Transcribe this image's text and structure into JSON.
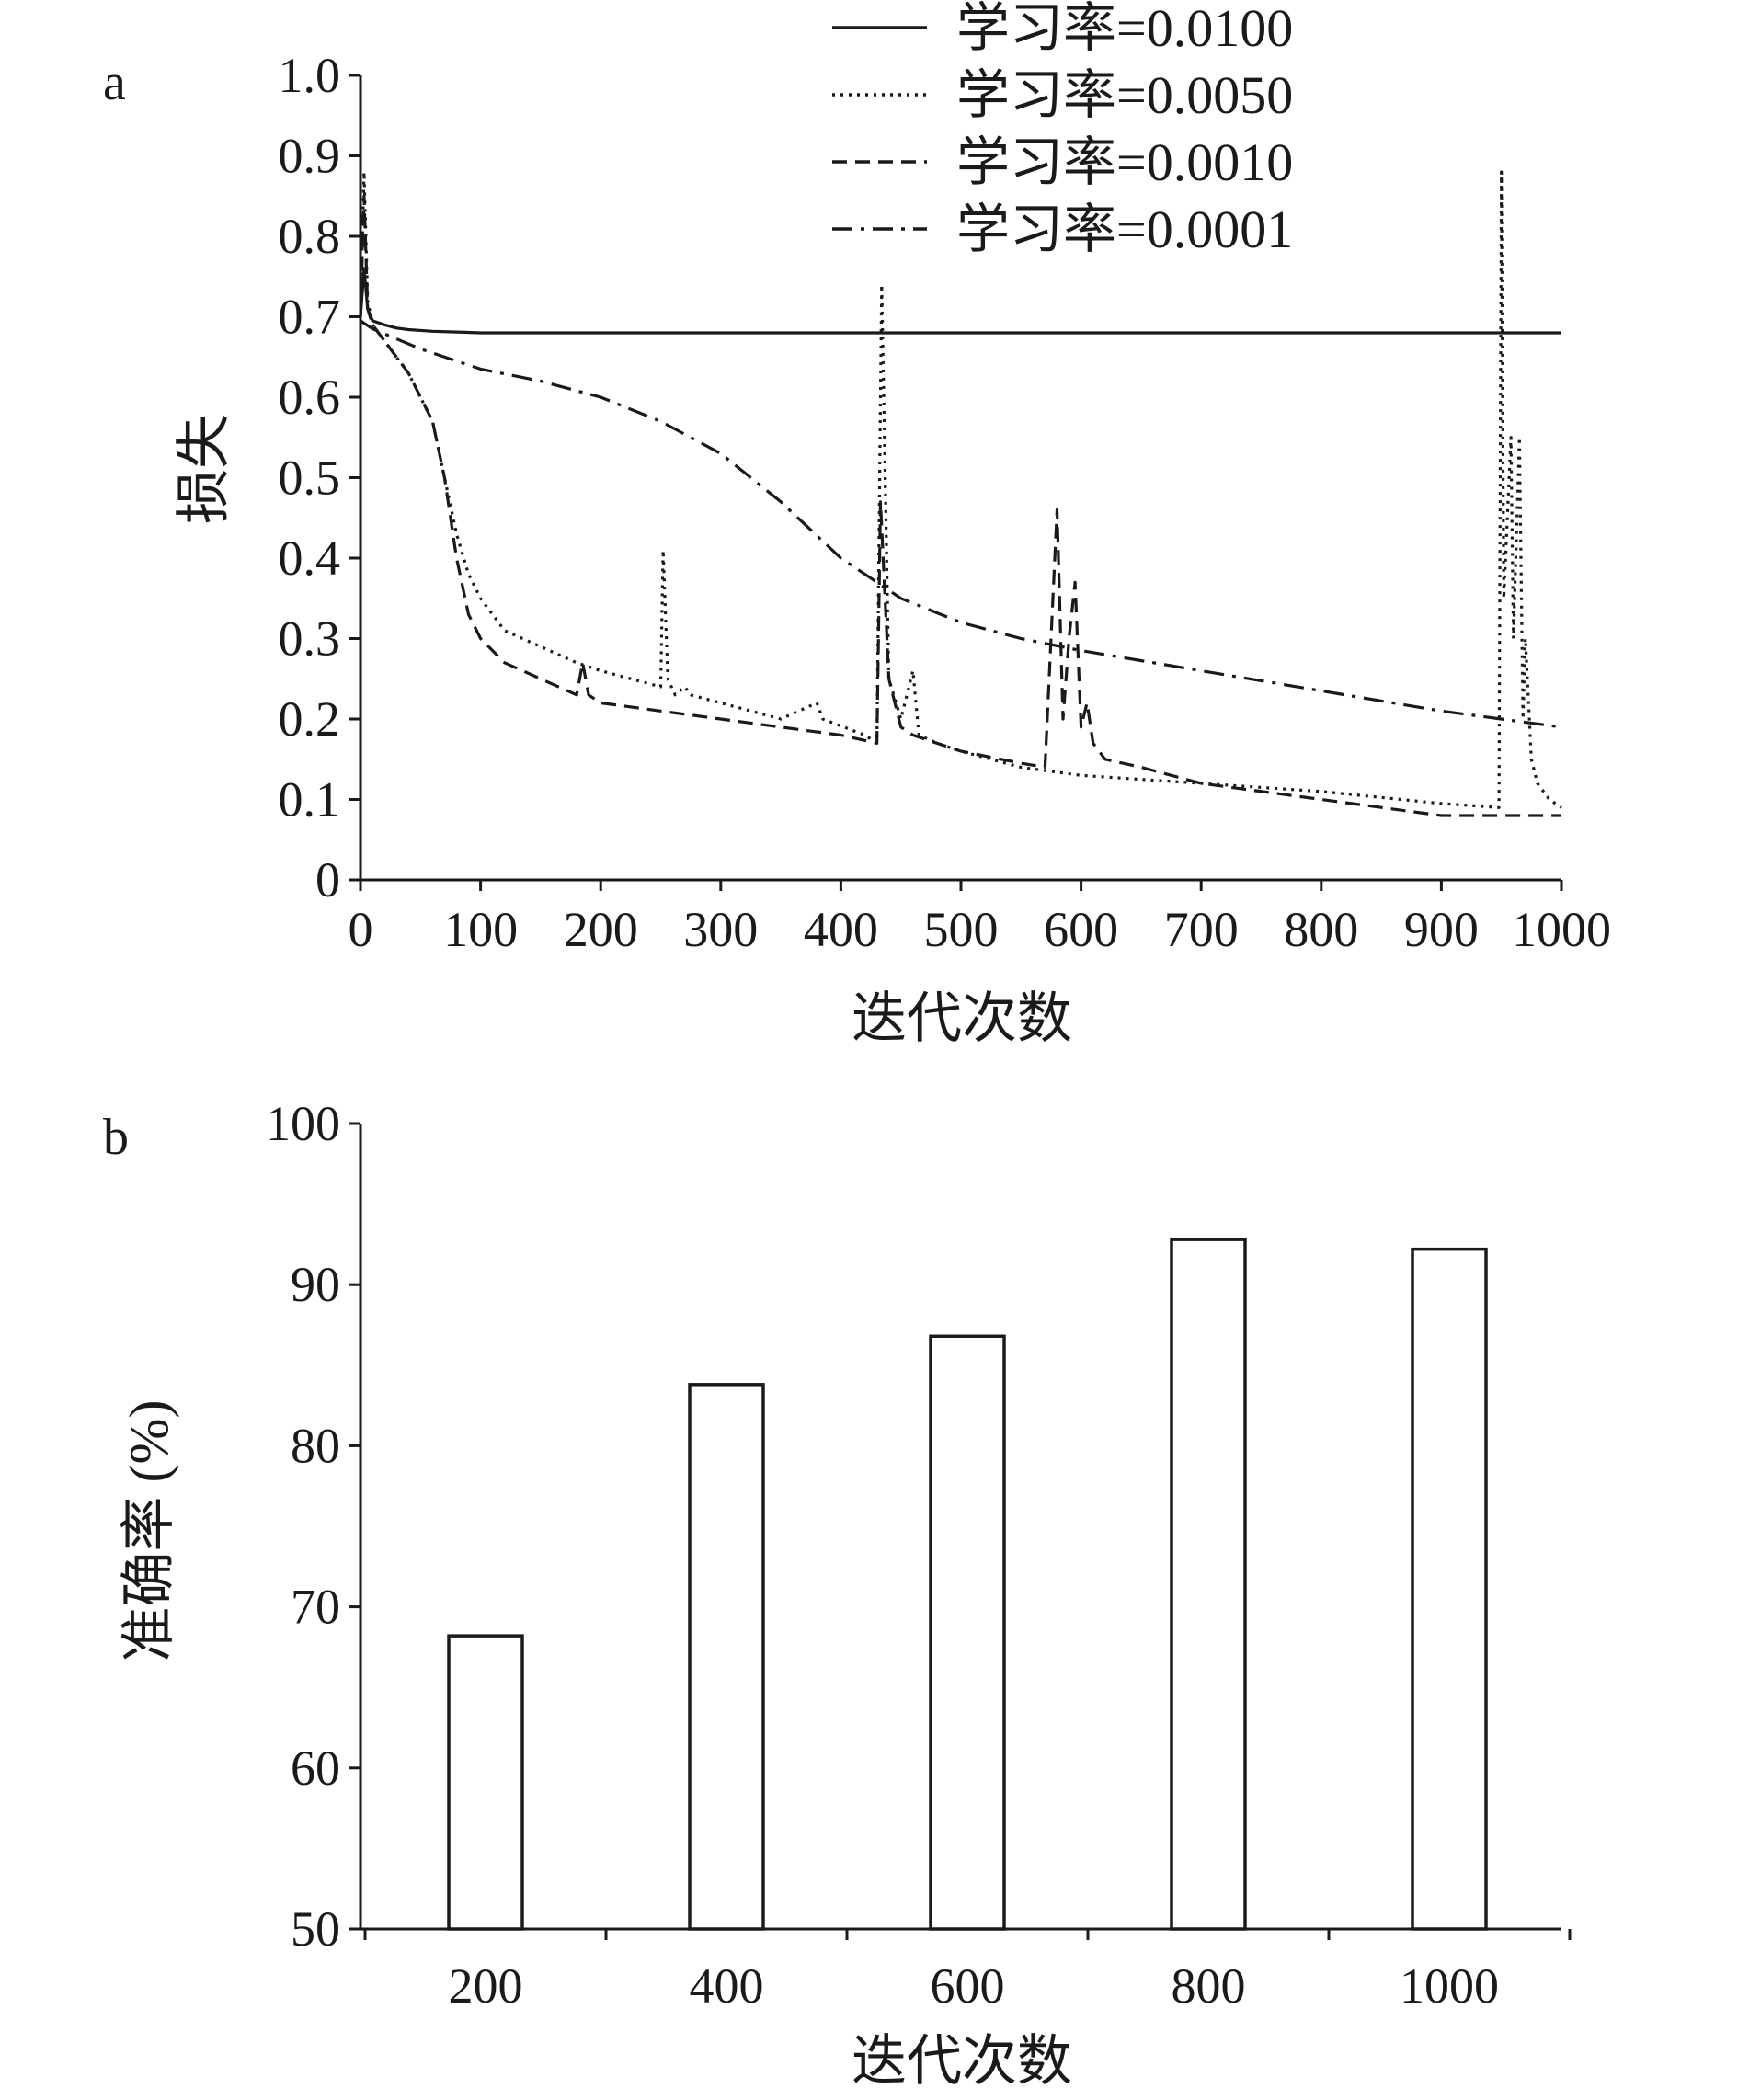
{
  "chart_data": [
    {
      "panel": "a",
      "type": "line",
      "xlabel": "迭代次数",
      "ylabel": "损失",
      "xlim": [
        0,
        1000
      ],
      "ylim": [
        0,
        1.0
      ],
      "xticks": [
        "0",
        "100",
        "200",
        "300",
        "400",
        "500",
        "600",
        "700",
        "800",
        "900",
        "1000"
      ],
      "yticks": [
        "0",
        "0.1",
        "0.2",
        "0.3",
        "0.4",
        "0.5",
        "0.6",
        "0.7",
        "0.8",
        "0.9",
        "1.0"
      ],
      "legend_position": "top-right",
      "series": [
        {
          "name": "学习率=0.0100",
          "style": "solid",
          "x": [
            0,
            3,
            6,
            10,
            20,
            30,
            40,
            60,
            80,
            100,
            150,
            200,
            300,
            400,
            500,
            600,
            700,
            800,
            900,
            1000
          ],
          "y": [
            0.7,
            0.76,
            0.71,
            0.695,
            0.69,
            0.686,
            0.684,
            0.682,
            0.681,
            0.68,
            0.68,
            0.68,
            0.68,
            0.68,
            0.68,
            0.68,
            0.68,
            0.68,
            0.68,
            0.68
          ]
        },
        {
          "name": "学习率=0.0050",
          "style": "dotted",
          "x": [
            0,
            3,
            6,
            10,
            20,
            40,
            60,
            70,
            80,
            90,
            100,
            120,
            150,
            180,
            200,
            250,
            252,
            256,
            262,
            270,
            275,
            300,
            350,
            380,
            385,
            420,
            430,
            434,
            440,
            450,
            460,
            465,
            480,
            500,
            550,
            600,
            700,
            800,
            900,
            948,
            950,
            952,
            958,
            960,
            965,
            968,
            970,
            975,
            980,
            990,
            1000
          ],
          "y": [
            0.7,
            0.88,
            0.72,
            0.69,
            0.67,
            0.63,
            0.57,
            0.5,
            0.43,
            0.38,
            0.35,
            0.31,
            0.29,
            0.27,
            0.26,
            0.24,
            0.41,
            0.25,
            0.23,
            0.24,
            0.23,
            0.22,
            0.2,
            0.22,
            0.2,
            0.18,
            0.17,
            0.74,
            0.25,
            0.2,
            0.26,
            0.18,
            0.17,
            0.16,
            0.14,
            0.13,
            0.12,
            0.11,
            0.095,
            0.09,
            0.88,
            0.35,
            0.55,
            0.3,
            0.55,
            0.2,
            0.3,
            0.15,
            0.12,
            0.1,
            0.09
          ]
        },
        {
          "name": "学习率=0.0010",
          "style": "dashed",
          "x": [
            0,
            3,
            6,
            10,
            20,
            40,
            50,
            60,
            70,
            80,
            90,
            100,
            120,
            150,
            180,
            185,
            190,
            200,
            250,
            300,
            350,
            400,
            430,
            433,
            440,
            450,
            460,
            480,
            500,
            550,
            570,
            580,
            585,
            590,
            595,
            600,
            605,
            610,
            620,
            650,
            700,
            800,
            900,
            950,
            1000
          ],
          "y": [
            0.7,
            0.85,
            0.71,
            0.69,
            0.67,
            0.63,
            0.6,
            0.57,
            0.5,
            0.4,
            0.33,
            0.3,
            0.27,
            0.25,
            0.23,
            0.27,
            0.23,
            0.22,
            0.21,
            0.2,
            0.19,
            0.18,
            0.17,
            0.47,
            0.25,
            0.19,
            0.18,
            0.17,
            0.16,
            0.145,
            0.14,
            0.46,
            0.2,
            0.3,
            0.37,
            0.19,
            0.22,
            0.17,
            0.15,
            0.14,
            0.12,
            0.1,
            0.08,
            0.08,
            0.08
          ]
        },
        {
          "name": "学习率=0.0001",
          "style": "dashdot",
          "x": [
            0,
            10,
            50,
            100,
            150,
            200,
            250,
            300,
            350,
            400,
            450,
            500,
            550,
            600,
            700,
            800,
            900,
            1000
          ],
          "y": [
            0.695,
            0.685,
            0.66,
            0.635,
            0.62,
            0.6,
            0.57,
            0.53,
            0.47,
            0.4,
            0.35,
            0.32,
            0.3,
            0.285,
            0.26,
            0.235,
            0.21,
            0.19
          ]
        }
      ]
    },
    {
      "panel": "b",
      "type": "bar",
      "xlabel": "迭代次数",
      "ylabel": "准确率 (%)",
      "categories": [
        "200",
        "400",
        "600",
        "800",
        "1000"
      ],
      "values": [
        68.2,
        83.8,
        86.8,
        92.8,
        92.2
      ],
      "ylim": [
        50,
        100
      ],
      "yticks": [
        "50",
        "60",
        "70",
        "80",
        "90",
        "100"
      ]
    }
  ]
}
